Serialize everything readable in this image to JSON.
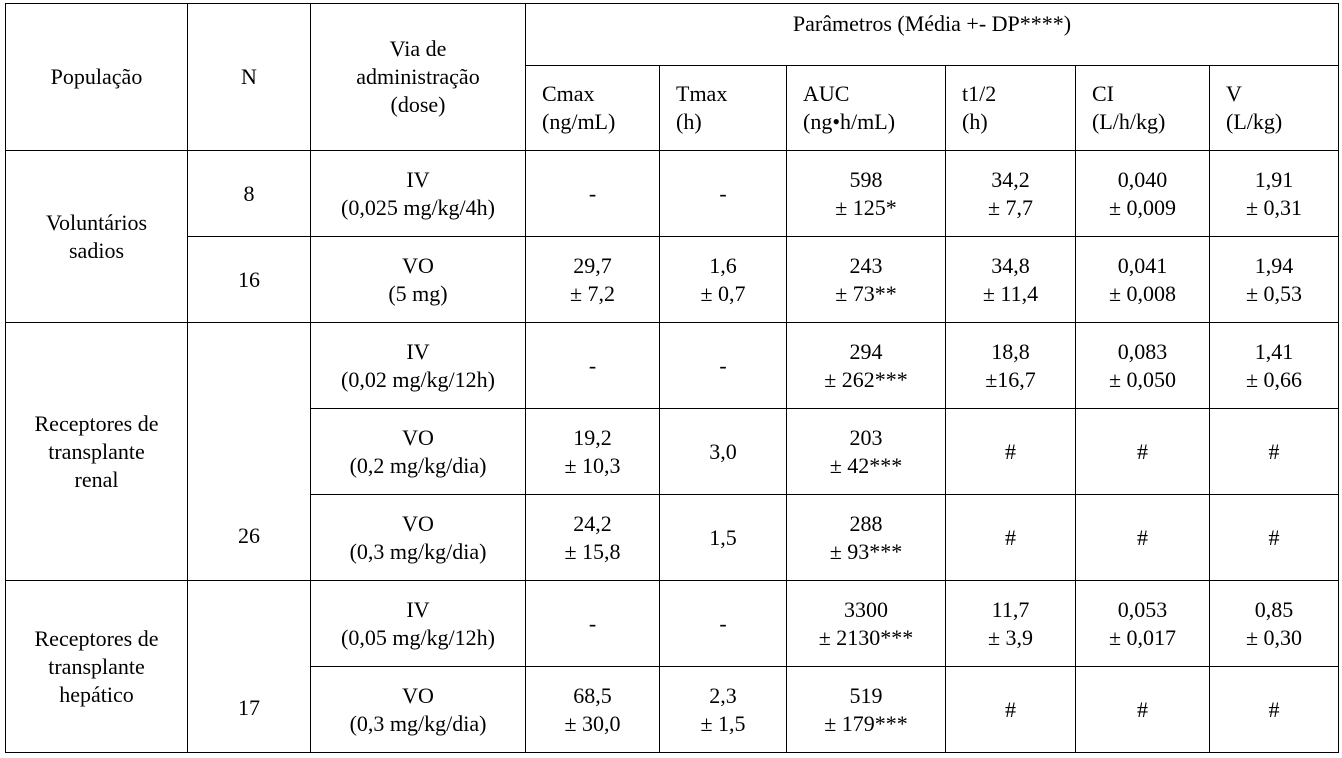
{
  "table": {
    "header": {
      "population": "População",
      "n": "N",
      "route": "Via de\nadministração\n(dose)",
      "parameters": "Parâmetros (Média +- DP****)",
      "columns": [
        "Cmax\n(ng/mL)",
        "Tmax\n(h)",
        "AUC\n(ng•h/mL)",
        "t1/2\n(h)",
        "CI\n(L/h/kg)",
        "V\n(L/kg)"
      ]
    },
    "groups": [
      {
        "population": "Voluntários\nsadios",
        "rows": [
          {
            "n": "8",
            "route": "IV\n(0,025 mg/kg/4h)",
            "values": [
              "-",
              "-",
              "598\n± 125*",
              "34,2\n± 7,7",
              "0,040\n± 0,009",
              "1,91\n± 0,31"
            ]
          },
          {
            "n": "16",
            "route": "VO\n(5 mg)",
            "values": [
              "29,7\n± 7,2",
              "1,6\n± 0,7",
              "243\n± 73**",
              "34,8\n± 11,4",
              "0,041\n± 0,008",
              "1,94\n± 0,53"
            ]
          }
        ]
      },
      {
        "population": "Receptores de\ntransplante\nrenal",
        "n": "26",
        "rows": [
          {
            "route": "IV\n(0,02 mg/kg/12h)",
            "values": [
              "-",
              "-",
              "294\n± 262***",
              "18,8\n±16,7",
              "0,083\n± 0,050",
              "1,41\n± 0,66"
            ]
          },
          {
            "route": "VO\n(0,2 mg/kg/dia)",
            "values": [
              "19,2\n± 10,3",
              "3,0",
              "203\n± 42***",
              "#",
              "#",
              "#"
            ]
          },
          {
            "route": "VO\n(0,3 mg/kg/dia)",
            "values": [
              "24,2\n± 15,8",
              "1,5",
              "288\n± 93***",
              "#",
              "#",
              "#"
            ]
          }
        ]
      },
      {
        "population": "Receptores de\ntransplante\nhepático",
        "n": "17",
        "rows": [
          {
            "route": "IV\n(0,05 mg/kg/12h)",
            "values": [
              "-",
              "-",
              "3300\n± 2130***",
              "11,7\n± 3,9",
              "0,053\n± 0,017",
              "0,85\n± 0,30"
            ]
          },
          {
            "route": "VO\n(0,3 mg/kg/dia)",
            "values": [
              "68,5\n± 30,0",
              "2,3\n± 1,5",
              "519\n± 179***",
              "#",
              "#",
              "#"
            ]
          }
        ]
      }
    ]
  }
}
